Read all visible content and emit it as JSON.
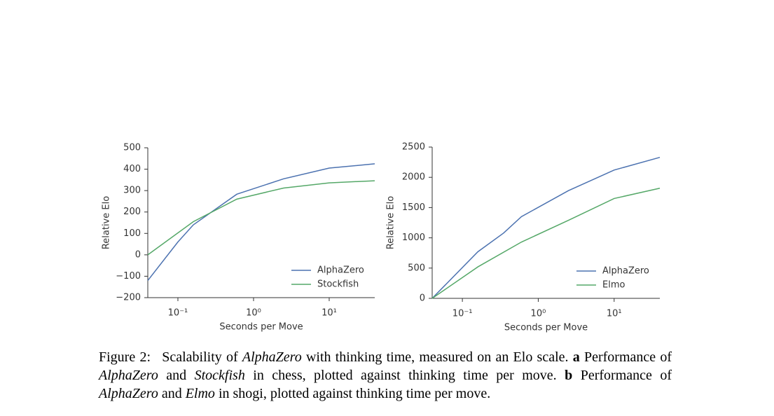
{
  "chart_data": [
    {
      "type": "line",
      "xlabel": "Seconds per Move",
      "ylabel": "Relative Elo",
      "xscale": "log",
      "xlim": [
        0.04,
        40
      ],
      "ylim": [
        -200,
        500
      ],
      "xticks": [
        {
          "value": 0.1,
          "label": "10⁻¹"
        },
        {
          "value": 1,
          "label": "10⁰"
        },
        {
          "value": 10,
          "label": "10¹"
        }
      ],
      "yticks": [
        {
          "value": -200,
          "label": "−200"
        },
        {
          "value": -100,
          "label": "−100"
        },
        0,
        100,
        200,
        300,
        400,
        500
      ],
      "legend": "lower right",
      "series": [
        {
          "name": "AlphaZero",
          "color": "#4c72b0",
          "x": [
            0.04,
            0.1,
            0.16,
            0.6,
            2.5,
            10,
            40
          ],
          "values": [
            -120,
            60,
            140,
            283,
            355,
            405,
            425
          ]
        },
        {
          "name": "Stockfish",
          "color": "#55a868",
          "x": [
            0.04,
            0.16,
            0.6,
            2.5,
            10,
            40
          ],
          "values": [
            0,
            155,
            260,
            312,
            336,
            346
          ]
        }
      ]
    },
    {
      "type": "line",
      "xlabel": "Seconds per Move",
      "ylabel": "Relative Elo",
      "xscale": "log",
      "xlim": [
        0.04,
        40
      ],
      "ylim": [
        0,
        2500
      ],
      "xticks": [
        {
          "value": 0.1,
          "label": "10⁻¹"
        },
        {
          "value": 1,
          "label": "10⁰"
        },
        {
          "value": 10,
          "label": "10¹"
        }
      ],
      "yticks": [
        0,
        500,
        1000,
        1500,
        2000,
        2500
      ],
      "legend": "lower right",
      "series": [
        {
          "name": "AlphaZero",
          "color": "#4c72b0",
          "x": [
            0.04,
            0.16,
            0.35,
            0.6,
            2.5,
            10,
            40
          ],
          "values": [
            0,
            770,
            1080,
            1350,
            1780,
            2120,
            2330
          ]
        },
        {
          "name": "Elmo",
          "color": "#55a868",
          "x": [
            0.04,
            0.16,
            0.6,
            2.5,
            10,
            40
          ],
          "values": [
            0,
            520,
            930,
            1290,
            1650,
            1820
          ]
        }
      ]
    }
  ],
  "caption": {
    "label": "Figure 2:",
    "parts": [
      "Scalability of ",
      "AlphaZero",
      " with thinking time, measured on an Elo scale. ",
      "a",
      " Performance of ",
      "AlphaZero",
      " and ",
      "Stockfish",
      " in chess, plotted against thinking time per move. ",
      "b",
      " Performance of ",
      "AlphaZero",
      " and ",
      "Elmo",
      " in shogi, plotted against thinking time per move."
    ]
  }
}
